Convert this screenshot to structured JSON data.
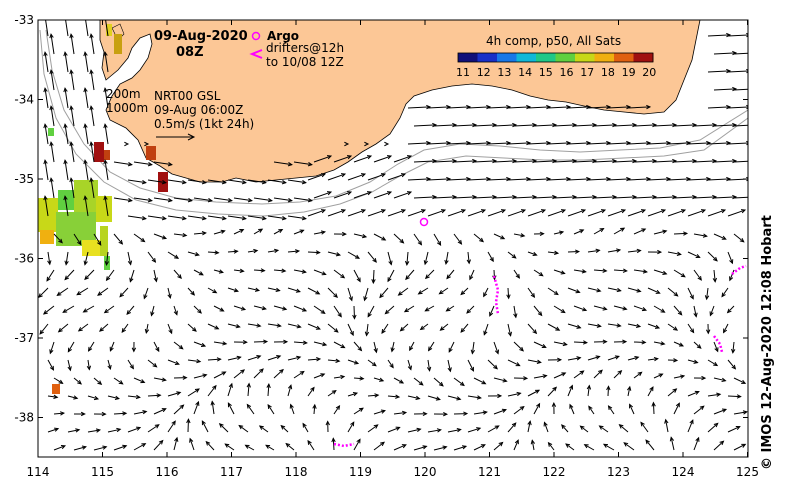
{
  "header": {
    "date": "09-Aug-2020",
    "time": "08Z"
  },
  "legend": {
    "argo_label": "Argo",
    "drifters_line1": "drifters@12h",
    "drifters_line2": "to 10/08 12Z",
    "argo_color": "#ff00ff",
    "drifter_color": "#ff00ff"
  },
  "colorbar": {
    "title": "4h comp, p50, All Sats",
    "ticks": [
      "11",
      "12",
      "13",
      "14",
      "15",
      "16",
      "17",
      "18",
      "19",
      "20"
    ],
    "colors": [
      "#10107a",
      "#1830c8",
      "#1878e8",
      "#10b8d8",
      "#20c888",
      "#60d040",
      "#c8d818",
      "#f0b010",
      "#e06010",
      "#a01010"
    ]
  },
  "info": {
    "iso200": "200m",
    "iso1000": "1000m",
    "product": "NRT00 GSL",
    "analysis_time": "09-Aug 06:00Z",
    "scale": "0.5m/s (1kt 24h)"
  },
  "axes": {
    "x_ticks": [
      "114",
      "115",
      "116",
      "117",
      "118",
      "119",
      "120",
      "121",
      "122",
      "123",
      "124",
      "125"
    ],
    "y_ticks": [
      "-33",
      "-34",
      "-35",
      "-36",
      "-37",
      "-38"
    ]
  },
  "credit": "© IMOS 12-Aug-2020 12:08 Hobart",
  "colors": {
    "land": "#fcc796",
    "arrow": "#000000",
    "isobath": "#a0a0a0"
  }
}
